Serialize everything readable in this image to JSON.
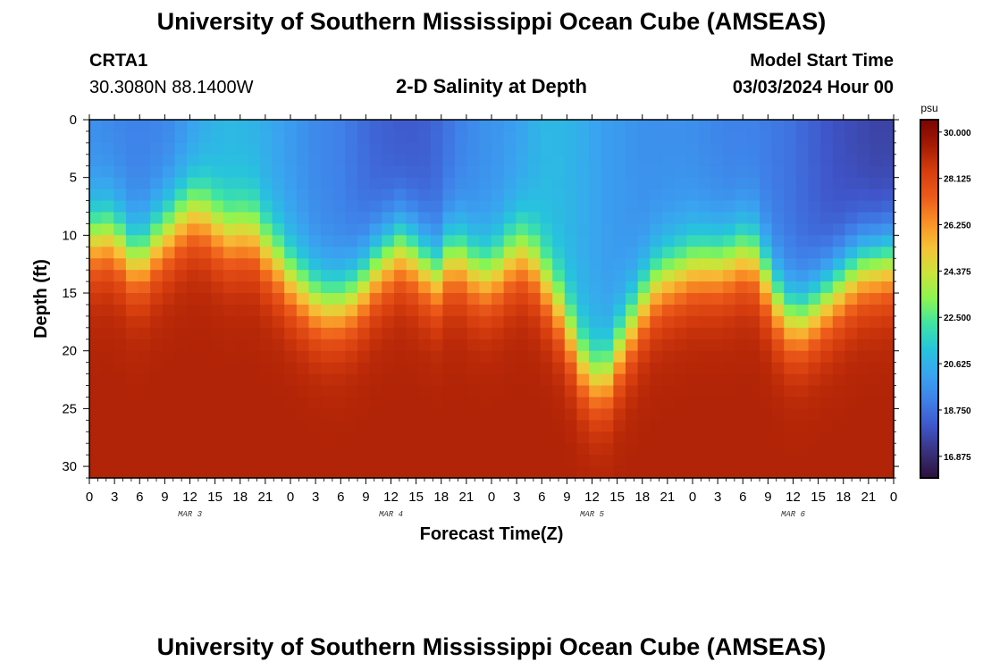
{
  "header": {
    "title": "University of Southern Mississippi Ocean Cube (AMSEAS)",
    "station_name": "CRTA1",
    "station_coords": "30.3080N  88.1400W",
    "chart_title": "2-D Salinity at Depth",
    "model_start_label": "Model Start Time",
    "model_start_value": "03/03/2024 Hour 00"
  },
  "footer": {
    "title": "University of Southern Mississippi Ocean Cube (AMSEAS)"
  },
  "chart_data": {
    "type": "heatmap",
    "title": "2-D Salinity at Depth",
    "xlabel": "Forecast Time(Z)",
    "ylabel": "Depth (ft)",
    "x_hours": [
      0,
      3,
      6,
      9,
      12,
      15,
      18,
      21,
      24,
      27,
      30,
      33,
      36,
      39,
      42,
      45,
      48,
      51,
      54,
      57,
      60,
      63,
      66,
      69,
      72,
      75,
      78,
      81,
      84,
      87,
      90,
      93,
      96
    ],
    "x_tick_labels": [
      "0",
      "3",
      "6",
      "9",
      "12",
      "15",
      "18",
      "21",
      "0",
      "3",
      "6",
      "9",
      "12",
      "15",
      "18",
      "21",
      "0",
      "3",
      "6",
      "9",
      "12",
      "15",
      "18",
      "21",
      "0",
      "3",
      "6",
      "9",
      "12",
      "15",
      "18",
      "21",
      "0"
    ],
    "xlim": [
      0,
      96
    ],
    "date_labels": [
      {
        "label": "MAR 3",
        "hour": 12
      },
      {
        "label": "MAR 4",
        "hour": 36
      },
      {
        "label": "MAR 5",
        "hour": 60
      },
      {
        "label": "MAR 6",
        "hour": 84
      }
    ],
    "y_ticks": [
      0,
      5,
      10,
      15,
      20,
      25,
      30
    ],
    "ylim": [
      0,
      31
    ],
    "y_inverted": true,
    "halocline_depth_ft": [
      10.5,
      10,
      10,
      11.5,
      12.5,
      11,
      10,
      9,
      8,
      8,
      9,
      10,
      10,
      9.5,
      11,
      12,
      13.5,
      14.5,
      15.5,
      16,
      16,
      15.5,
      14.5,
      13,
      12,
      11,
      11.5,
      12.5,
      13.5,
      12,
      12,
      13,
      13.5,
      13,
      12,
      11.5,
      12.5,
      14.5,
      16.5,
      19,
      21.5,
      22.5,
      22,
      19.5,
      17.5,
      15.5,
      14,
      13.5,
      13,
      12.5,
      12.5,
      12.5,
      12,
      11.5,
      12,
      14.5,
      16.5,
      17.5,
      17,
      16,
      15,
      14,
      13,
      12.5,
      12.5,
      12
    ],
    "surface_salinity_psu": [
      19.6,
      19.4,
      19.2,
      19.2,
      19.4,
      20.0,
      20.6,
      20.8,
      20.6,
      20.2,
      19.8,
      19.4,
      19.2,
      18.8,
      18.4,
      18.2,
      18.2,
      18.6,
      19.2,
      19.6,
      19.8,
      20.2,
      20.8,
      20.8,
      20.4,
      20.0,
      19.8,
      19.6,
      19.6,
      19.6,
      19.4,
      19.2,
      19.2,
      19.0,
      18.8,
      18.4,
      18.0,
      17.8,
      17.6,
      17.6
    ],
    "deep_salinity_psu": 29.2,
    "colorbar": {
      "unit": "psu",
      "min": 16.0,
      "max": 30.5,
      "tick_values": [
        30.0,
        28.125,
        26.25,
        24.375,
        22.5,
        20.625,
        18.75,
        16.875
      ],
      "tick_labels": [
        "30.000",
        "28.125",
        "26.250",
        "24.375",
        "22.500",
        "20.625",
        "18.750",
        "16.875"
      ],
      "colors": [
        "#2d0f3e",
        "#38317a",
        "#3f55c9",
        "#3f7fe8",
        "#3aa3f0",
        "#27c3dd",
        "#3ee3a6",
        "#8af552",
        "#cbe43a",
        "#f6c237",
        "#f99025",
        "#ec5a1a",
        "#d63d0e",
        "#a51b04",
        "#7a0403"
      ]
    }
  }
}
